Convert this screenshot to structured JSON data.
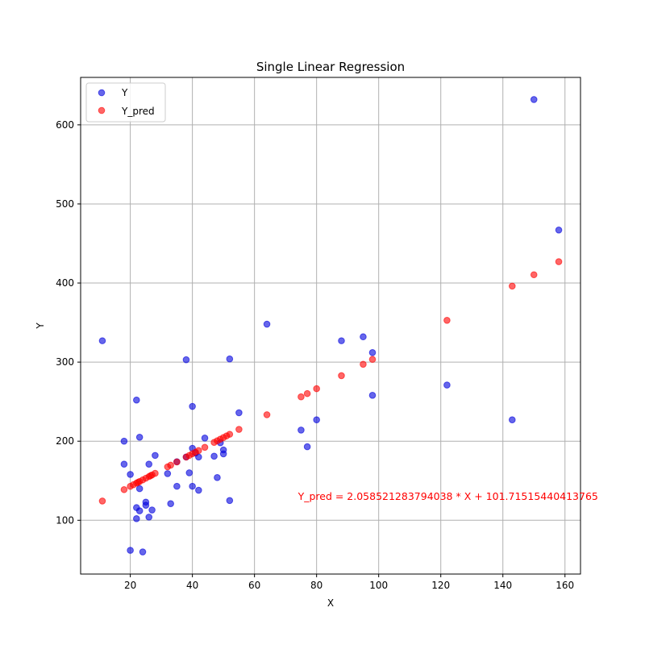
{
  "chart_data": {
    "type": "scatter",
    "title": "Single Linear Regression",
    "xlabel": "X",
    "ylabel": "Y",
    "xlim": [
      4,
      165
    ],
    "ylim": [
      32,
      660
    ],
    "xticks": [
      20,
      40,
      60,
      80,
      100,
      120,
      140,
      160
    ],
    "yticks": [
      100,
      200,
      300,
      400,
      500,
      600
    ],
    "grid": true,
    "legend_placement": "top-left",
    "regression": {
      "slope": 2.058521283794038,
      "intercept": 101.71515440413765
    },
    "annotation": {
      "text": "Y_pred = 2.058521283794038 * X + 101.71515440413765",
      "x": 74,
      "y": 124,
      "color": "#ff0000"
    },
    "series": [
      {
        "name": "Y",
        "color": "#0000dd",
        "points": [
          [
            11,
            327
          ],
          [
            18,
            200
          ],
          [
            18,
            171
          ],
          [
            20,
            158
          ],
          [
            20,
            62
          ],
          [
            22,
            252
          ],
          [
            22,
            116
          ],
          [
            22,
            102
          ],
          [
            23,
            205
          ],
          [
            23,
            112
          ],
          [
            23,
            140
          ],
          [
            24,
            60
          ],
          [
            25,
            123
          ],
          [
            25,
            119
          ],
          [
            26,
            171
          ],
          [
            26,
            104
          ],
          [
            27,
            113
          ],
          [
            28,
            182
          ],
          [
            32,
            159
          ],
          [
            33,
            121
          ],
          [
            35,
            174
          ],
          [
            35,
            143
          ],
          [
            38,
            303
          ],
          [
            38,
            180
          ],
          [
            39,
            160
          ],
          [
            40,
            244
          ],
          [
            40,
            191
          ],
          [
            40,
            143
          ],
          [
            41,
            185
          ],
          [
            42,
            180
          ],
          [
            42,
            138
          ],
          [
            44,
            204
          ],
          [
            47,
            181
          ],
          [
            48,
            154
          ],
          [
            49,
            198
          ],
          [
            50,
            184
          ],
          [
            50,
            189
          ],
          [
            52,
            304
          ],
          [
            52,
            125
          ],
          [
            55,
            236
          ],
          [
            64,
            348
          ],
          [
            75,
            214
          ],
          [
            77,
            193
          ],
          [
            80,
            227
          ],
          [
            88,
            327
          ],
          [
            95,
            332
          ],
          [
            98,
            312
          ],
          [
            98,
            258
          ],
          [
            122,
            271
          ],
          [
            143,
            227
          ],
          [
            150,
            632
          ],
          [
            158,
            467
          ]
        ]
      },
      {
        "name": "Y_pred",
        "color": "#ff0000",
        "x": [
          11,
          18,
          20,
          21,
          22,
          22.5,
          23,
          24,
          25,
          26,
          26.5,
          27,
          28,
          32,
          33,
          35,
          38,
          39,
          40,
          41,
          42,
          44,
          47,
          48,
          49,
          50,
          51,
          52,
          55,
          64,
          75,
          77,
          80,
          88,
          95,
          98,
          122,
          143,
          150,
          158
        ]
      }
    ]
  }
}
